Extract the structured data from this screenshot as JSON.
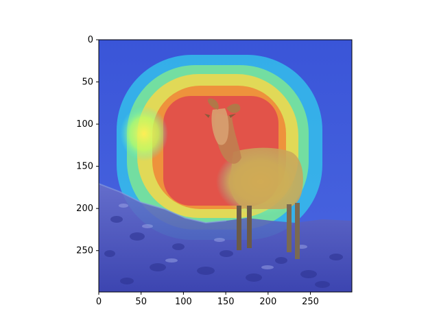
{
  "chart_data": {
    "type": "heatmap",
    "title": "",
    "xlabel": "",
    "ylabel": "",
    "xlim": [
      0,
      299
    ],
    "ylim": [
      299,
      0
    ],
    "x_ticks": [
      0,
      50,
      100,
      150,
      200,
      250
    ],
    "y_ticks": [
      0,
      50,
      100,
      150,
      200,
      250
    ],
    "colormap": "jet",
    "overlay_alpha": 0.5,
    "background_subject": "bighorn-sheep-on-rocky-slope",
    "attention_regions": [
      {
        "name": "peak",
        "cx": 125,
        "cy": 140,
        "rx": 95,
        "ry": 95,
        "level": 1.0
      },
      {
        "name": "secondary-left",
        "cx": 55,
        "cy": 110,
        "rx": 30,
        "ry": 35,
        "level": 0.6
      },
      {
        "name": "body-right",
        "cx": 195,
        "cy": 205,
        "rx": 55,
        "ry": 40,
        "level": 0.55
      }
    ],
    "grid": false,
    "legend": "none"
  }
}
